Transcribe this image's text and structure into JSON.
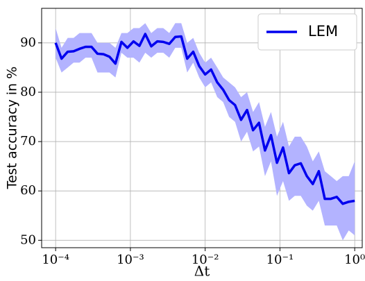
{
  "chart_data": {
    "type": "line",
    "xlabel": "Δt",
    "ylabel": "Test accuracy in %",
    "xscale": "log",
    "grid": true,
    "legend": "upper right",
    "xlim": [
      6.5e-05,
      1.26
    ],
    "ylim": [
      48.5,
      97
    ],
    "xticks": [
      {
        "value": 0.0001,
        "label": "10⁻⁴"
      },
      {
        "value": 0.001,
        "label": "10⁻³"
      },
      {
        "value": 0.01,
        "label": "10⁻²"
      },
      {
        "value": 0.1,
        "label": "10⁻¹"
      },
      {
        "value": 1,
        "label": "10⁰"
      }
    ],
    "yticks": [
      50,
      60,
      70,
      80,
      90
    ],
    "x": [
      0.0001,
      0.00012,
      0.000145,
      0.000174,
      0.000209,
      0.000251,
      0.000302,
      0.000363,
      0.000437,
      0.000525,
      0.000631,
      0.000759,
      0.000912,
      0.0011,
      0.00132,
      0.00158,
      0.0019,
      0.00229,
      0.00275,
      0.00331,
      0.00398,
      0.00479,
      0.00575,
      0.00692,
      0.00832,
      0.01,
      0.012,
      0.0145,
      0.0174,
      0.0209,
      0.0251,
      0.0302,
      0.0363,
      0.0437,
      0.0525,
      0.0631,
      0.0759,
      0.0912,
      0.11,
      0.132,
      0.158,
      0.19,
      0.229,
      0.275,
      0.331,
      0.398,
      0.479,
      0.575,
      0.692,
      0.832,
      1
    ],
    "series": [
      {
        "name": "LEM",
        "color": "#0000ee",
        "band_color": "#b3b3ff",
        "values": [
          90,
          86.8,
          88.2,
          88.3,
          88.8,
          89.2,
          89.2,
          87.8,
          87.7,
          87.2,
          85.8,
          90.2,
          89.0,
          90.3,
          89.4,
          91.8,
          89.3,
          90.3,
          90.2,
          89.8,
          91.2,
          91.3,
          86.8,
          88.2,
          85.3,
          83.6,
          84.6,
          82.0,
          80.5,
          78.4,
          77.4,
          74.4,
          76.4,
          72.3,
          73.8,
          68.2,
          71.3,
          65.7,
          68.8,
          63.6,
          65.2,
          65.6,
          63.0,
          61.4,
          64.0,
          58.4,
          58.4,
          58.8,
          57.4,
          57.8,
          58.0
        ],
        "band_lower": [
          87,
          84,
          85,
          86,
          86,
          87,
          87,
          84,
          84,
          84,
          83,
          88,
          87,
          87,
          86,
          88,
          87,
          88,
          88,
          87,
          89,
          89,
          84,
          86,
          83,
          81,
          82,
          79,
          78,
          75,
          74,
          70,
          72,
          68,
          69,
          63,
          66,
          59,
          62,
          58,
          59,
          59,
          57,
          56,
          58,
          53,
          53,
          53,
          50,
          52,
          51
        ],
        "band_upper": [
          93,
          89,
          91,
          91,
          92,
          92,
          92,
          90,
          90,
          90,
          89,
          92,
          92,
          93,
          93,
          94,
          92,
          93,
          93,
          92,
          94,
          94,
          90,
          91,
          88,
          86,
          87,
          85,
          83,
          82,
          81,
          79,
          80,
          76,
          78,
          73,
          76,
          71,
          74,
          69,
          71,
          71,
          69,
          66,
          68,
          64,
          63,
          62,
          63,
          63,
          66
        ]
      }
    ]
  }
}
